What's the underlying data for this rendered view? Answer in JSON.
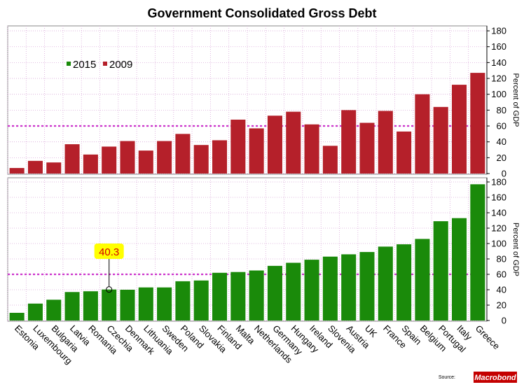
{
  "chart_data": {
    "type": "bar",
    "title": "Government Consolidated Gross Debt",
    "ylabel": "Percent of GDP",
    "reference_line": 60,
    "legend": [
      {
        "label": "2015",
        "color": "#1a8a0a"
      },
      {
        "label": "2009",
        "color": "#b5202a"
      }
    ],
    "categories": [
      "Estonia",
      "Luxembourg",
      "Bulgaria",
      "Latvia",
      "Romania",
      "Czechia",
      "Denmark",
      "Lithuania",
      "Sweden",
      "Poland",
      "Slovakia",
      "Finland",
      "Malta",
      "Netherlands",
      "Germany",
      "Hungary",
      "Ireland",
      "Slovenia",
      "Austria",
      "UK",
      "France",
      "Spain",
      "Belgium",
      "Portugal",
      "Italy",
      "Greece"
    ],
    "panels": [
      {
        "name": "2009",
        "color": "#b5202a",
        "ylim": [
          0,
          185
        ],
        "yticks": [
          0,
          20,
          40,
          60,
          80,
          100,
          120,
          140,
          160,
          180
        ],
        "values": [
          7,
          16,
          14,
          37,
          24,
          34,
          41,
          29,
          41,
          50,
          36,
          42,
          68,
          57,
          73,
          78,
          62,
          35,
          80,
          64,
          79,
          53,
          100,
          84,
          112,
          127
        ]
      },
      {
        "name": "2015",
        "color": "#1a8a0a",
        "ylim": [
          0,
          185
        ],
        "yticks": [
          0,
          20,
          40,
          60,
          80,
          100,
          120,
          140,
          160,
          180
        ],
        "values": [
          10,
          22,
          27,
          37,
          38,
          40.3,
          40,
          43,
          43,
          51,
          52,
          62,
          63,
          65,
          71,
          75,
          79,
          83,
          86,
          89,
          96,
          99,
          106,
          129,
          133,
          177
        ]
      }
    ],
    "annotation": {
      "label": "40.3",
      "category": "Czechia",
      "value": 40.3,
      "color": "#ffff00"
    },
    "source_label": "Source:",
    "brand": "Macrobond"
  }
}
